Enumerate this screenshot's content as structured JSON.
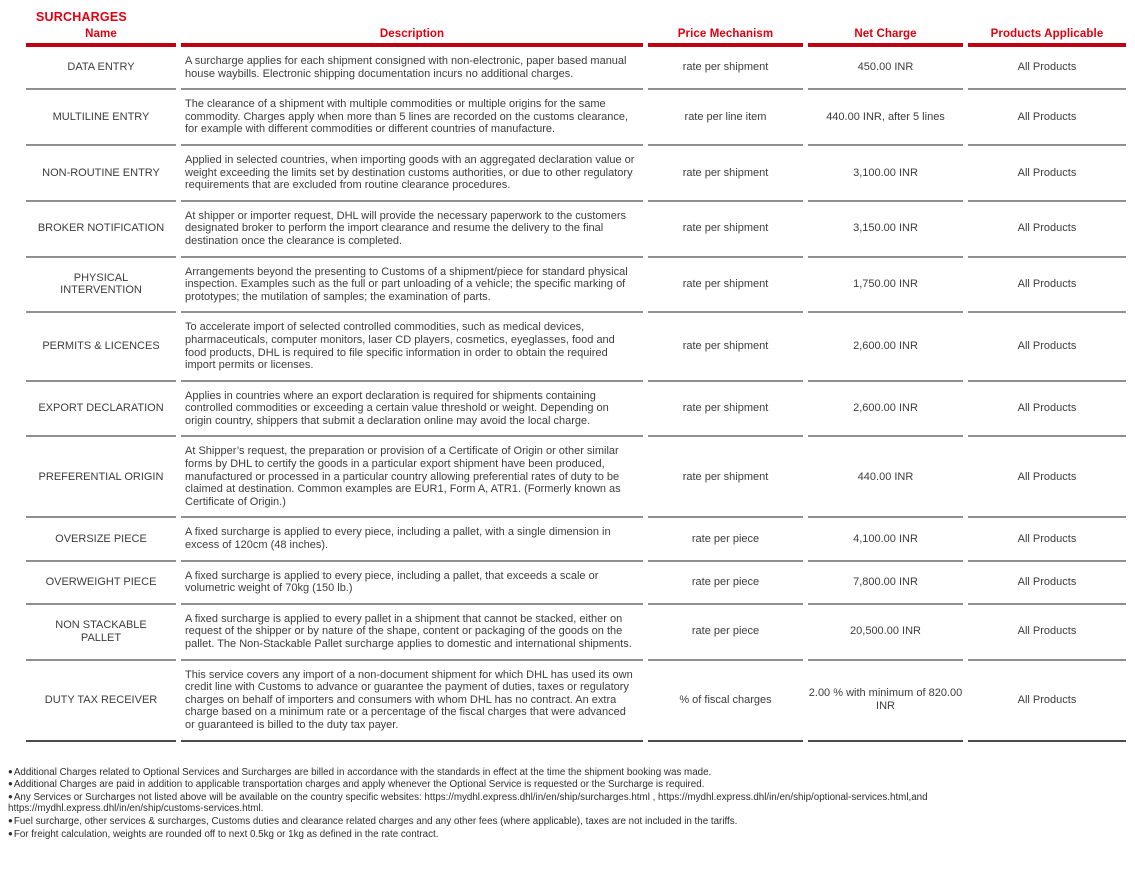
{
  "title": "SURCHARGES",
  "colors": {
    "header_text_red": "#e2000f",
    "header_bar_red": "#c00014",
    "row_divider_gray": "#8f8f8f",
    "table_bottom_border": "#4b4b4b",
    "body_text": "#3d3d3d"
  },
  "table": {
    "headers": [
      "Name",
      "Description",
      "Price Mechanism",
      "Net Charge",
      "Products Applicable"
    ],
    "rows": [
      {
        "name": "DATA ENTRY",
        "description": "A surcharge applies for each shipment consigned with non-electronic, paper based manual house waybills. Electronic shipping documentation incurs no additional charges.",
        "price_mechanism": "rate per shipment",
        "net_charge": "450.00 INR",
        "products_applicable": "All Products"
      },
      {
        "name": "MULTILINE ENTRY",
        "description": "The clearance of a shipment with multiple commodities or multiple origins for the same commodity. Charges apply when more than 5 lines are recorded on the customs clearance, for example with different commodities or different countries of manufacture.",
        "price_mechanism": "rate per line item",
        "net_charge": "440.00 INR, after 5 lines",
        "products_applicable": "All Products"
      },
      {
        "name": "NON-ROUTINE ENTRY",
        "description": "Applied in selected countries, when importing goods with an aggregated declaration value or weight exceeding the limits set by destination customs authorities, or due to other regulatory requirements that are excluded from routine clearance procedures.",
        "price_mechanism": "rate per shipment",
        "net_charge": "3,100.00 INR",
        "products_applicable": "All Products"
      },
      {
        "name": "BROKER NOTIFICATION",
        "description": "At shipper or importer request, DHL will provide the necessary paperwork to the customers designated broker to perform the import clearance and resume the delivery to the final destination once the clearance is completed.",
        "price_mechanism": "rate per shipment",
        "net_charge": "3,150.00 INR",
        "products_applicable": "All Products"
      },
      {
        "name": "PHYSICAL INTERVENTION",
        "description": "Arrangements beyond the presenting to Customs of a shipment/piece for standard physical inspection. Examples such as the full or part unloading of a vehicle; the specific marking of prototypes; the mutilation of samples; the examination of parts.",
        "price_mechanism": "rate per shipment",
        "net_charge": "1,750.00 INR",
        "products_applicable": "All Products"
      },
      {
        "name": "PERMITS & LICENCES",
        "description": "To accelerate import of selected controlled commodities, such as medical devices, pharmaceuticals, computer monitors, laser CD players, cosmetics, eyeglasses, food and food products, DHL is required to file specific information in order to obtain the required import permits or licenses.",
        "price_mechanism": "rate per shipment",
        "net_charge": "2,600.00 INR",
        "products_applicable": "All Products"
      },
      {
        "name": "EXPORT DECLARATION",
        "description": "Applies in countries where an export declaration is required for shipments containing controlled commodities or exceeding a certain value threshold or weight. Depending on origin country, shippers that submit a declaration online may avoid the local charge.",
        "price_mechanism": "rate per shipment",
        "net_charge": "2,600.00 INR",
        "products_applicable": "All Products"
      },
      {
        "name": "PREFERENTIAL ORIGIN",
        "description": "At Shipper’s request, the preparation or provision of a Certificate of Origin or other similar forms by DHL to certify the goods in a particular export shipment have been produced, manufactured or processed in a particular country allowing preferential rates of duty to be claimed at destination. Common examples are EUR1, Form A, ATR1. (Formerly known as Certificate of Origin.)",
        "price_mechanism": "rate per shipment",
        "net_charge": "440.00 INR",
        "products_applicable": "All Products"
      },
      {
        "name": "OVERSIZE PIECE",
        "description": "A fixed surcharge is applied to every piece, including a pallet, with a single dimension in excess of 120cm (48 inches).",
        "price_mechanism": "rate per piece",
        "net_charge": "4,100.00 INR",
        "products_applicable": "All Products"
      },
      {
        "name": "OVERWEIGHT PIECE",
        "description": "A fixed surcharge is applied to every piece, including a pallet, that exceeds a scale or volumetric weight of 70kg (150 lb.)",
        "price_mechanism": "rate per piece",
        "net_charge": "7,800.00 INR",
        "products_applicable": "All Products"
      },
      {
        "name": "NON STACKABLE PALLET",
        "description": "A fixed surcharge is applied to every pallet in a shipment that cannot be stacked, either on request of the shipper or by nature of the shape, content or packaging of the goods on the pallet. The Non-Stackable Pallet surcharge applies to domestic and international shipments.",
        "price_mechanism": "rate per piece",
        "net_charge": "20,500.00 INR",
        "products_applicable": "All Products"
      },
      {
        "name": "DUTY TAX RECEIVER",
        "description": "This service covers any import of a non-document shipment for which DHL has used its own credit line with Customs to advance or guarantee the payment of duties, taxes or regulatory charges on behalf of importers and consumers with whom DHL has no contract. An extra charge based on a minimum rate or a percentage of the fiscal charges that were advanced or guaranteed is billed to the duty tax payer.",
        "price_mechanism": "% of fiscal charges",
        "net_charge": "2.00 % with minimum of 820.00 INR",
        "products_applicable": "All Products"
      }
    ]
  },
  "footnotes": {
    "bullet_glyph": "●",
    "items": [
      "Additional Charges related to Optional Services and Surcharges are billed in accordance with the standards in effect at the time the shipment booking was made.",
      "Additional Charges are paid in addition to applicable transportation charges and apply whenever the Optional Service is requested or the Surcharge is required.",
      "Any Services or Surcharges not listed above will be available on the country specific websites: https://mydhl.express.dhl/in/en/ship/surcharges.html , https://mydhl.express.dhl/in/en/ship/optional-services.html,and https://mydhl.express.dhl/in/en/ship/customs-services.html.",
      "Fuel surcharge, other services & surcharges, Customs duties and clearance related charges and any other fees (where applicable), taxes are not included in the tariffs.",
      "For freight calculation, weights are rounded off to next 0.5kg or 1kg as defined in the rate contract."
    ]
  }
}
